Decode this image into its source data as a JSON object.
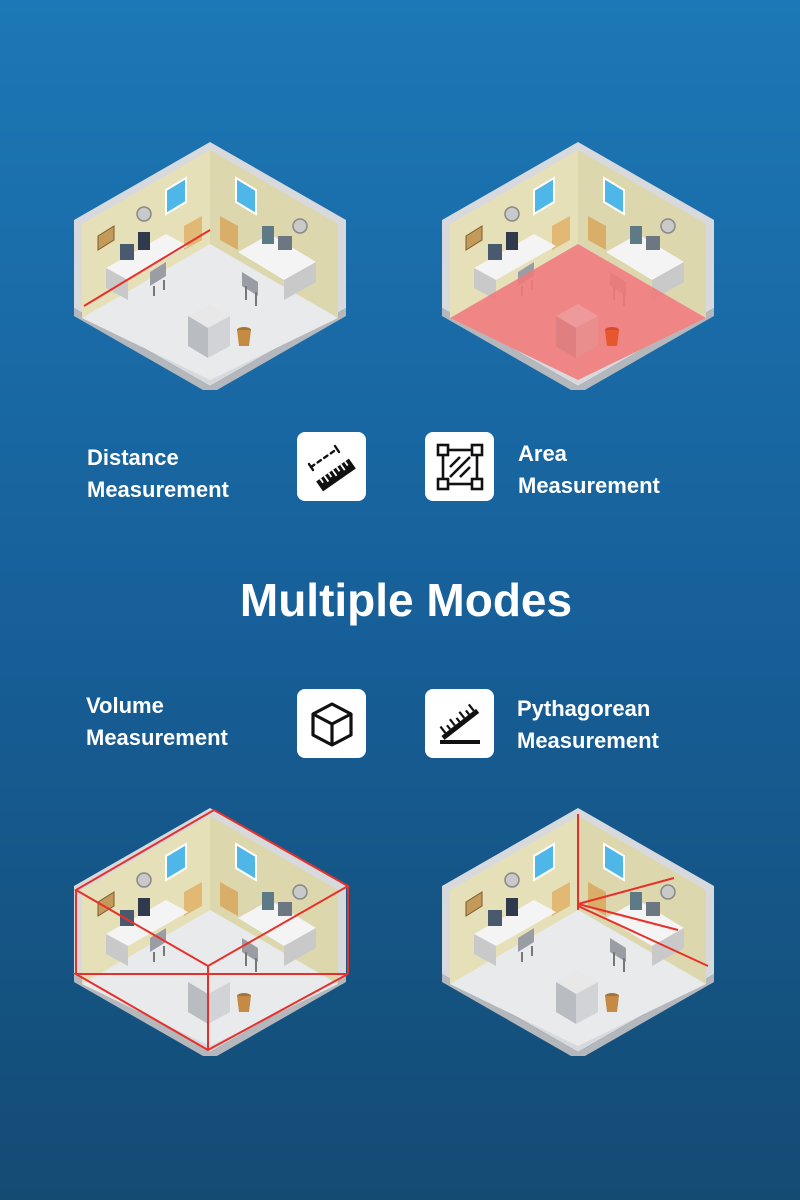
{
  "heading": "Multiple Modes",
  "modes": {
    "distance": {
      "line1": "Distance",
      "line2": "Measurement",
      "icon": "ruler-measure-icon"
    },
    "area": {
      "line1": "Area",
      "line2": "Measurement",
      "icon": "area-square-icon"
    },
    "volume": {
      "line1": "Volume",
      "line2": "Measurement",
      "icon": "cube-icon"
    },
    "pythagorean": {
      "line1": "Pythagorean",
      "line2": "Measurement",
      "icon": "angled-ruler-icon"
    }
  },
  "colors": {
    "laser": "#e8302a",
    "area_fill": "#f07a7a",
    "background_top": "#1c78b6",
    "background_bottom": "#134b73"
  }
}
